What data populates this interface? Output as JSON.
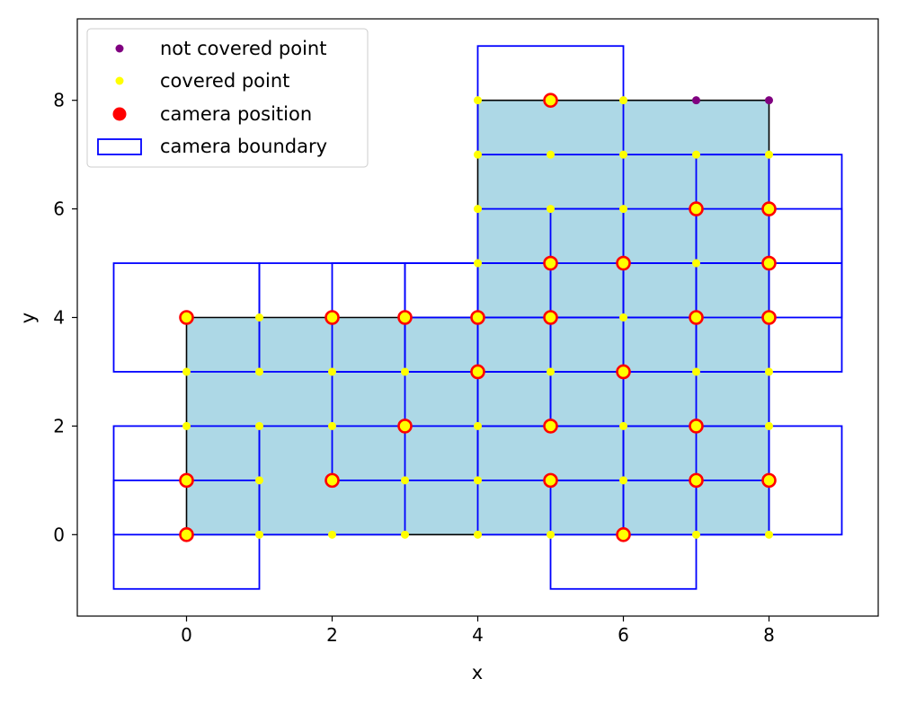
{
  "chart_data": {
    "type": "scatter",
    "title": "",
    "xlabel": "x",
    "ylabel": "y",
    "xlim": [
      -1.5,
      9.5
    ],
    "ylim": [
      -1.5,
      9.5
    ],
    "xticks": [
      0,
      2,
      4,
      6,
      8
    ],
    "yticks": [
      0,
      2,
      4,
      6,
      8
    ],
    "grid": false,
    "legend_position": "upper-left",
    "colors": {
      "region_fill": "#add8e6",
      "region_edge": "#000000",
      "boundary": "#0000ff",
      "covered": "#ffff00",
      "not_covered": "#800080",
      "camera": "#ff0000"
    },
    "legend": [
      {
        "label": "not covered point",
        "marker": "purple-dot"
      },
      {
        "label": "covered point",
        "marker": "yellow-dot"
      },
      {
        "label": "camera position",
        "marker": "red-circle"
      },
      {
        "label": "camera boundary",
        "marker": "blue-rect"
      }
    ],
    "region_polygon": [
      [
        0,
        0
      ],
      [
        4,
        0
      ],
      [
        4,
        8
      ],
      [
        8,
        8
      ],
      [
        8,
        0
      ],
      [
        0,
        0
      ],
      [
        0,
        4
      ],
      [
        4,
        4
      ]
    ],
    "region_outline": [
      [
        0,
        0
      ],
      [
        8,
        0
      ],
      [
        8,
        8
      ],
      [
        4,
        8
      ],
      [
        4,
        4
      ],
      [
        0,
        4
      ]
    ],
    "not_covered_points": [
      [
        7,
        8
      ],
      [
        8,
        8
      ]
    ],
    "covered_points": [
      [
        0,
        0
      ],
      [
        1,
        0
      ],
      [
        2,
        0
      ],
      [
        3,
        0
      ],
      [
        4,
        0
      ],
      [
        5,
        0
      ],
      [
        6,
        0
      ],
      [
        7,
        0
      ],
      [
        8,
        0
      ],
      [
        0,
        1
      ],
      [
        1,
        1
      ],
      [
        2,
        1
      ],
      [
        3,
        1
      ],
      [
        4,
        1
      ],
      [
        5,
        1
      ],
      [
        6,
        1
      ],
      [
        7,
        1
      ],
      [
        8,
        1
      ],
      [
        0,
        2
      ],
      [
        1,
        2
      ],
      [
        2,
        2
      ],
      [
        3,
        2
      ],
      [
        4,
        2
      ],
      [
        5,
        2
      ],
      [
        6,
        2
      ],
      [
        7,
        2
      ],
      [
        8,
        2
      ],
      [
        0,
        3
      ],
      [
        1,
        3
      ],
      [
        2,
        3
      ],
      [
        3,
        3
      ],
      [
        4,
        3
      ],
      [
        5,
        3
      ],
      [
        6,
        3
      ],
      [
        7,
        3
      ],
      [
        8,
        3
      ],
      [
        0,
        4
      ],
      [
        1,
        4
      ],
      [
        2,
        4
      ],
      [
        3,
        4
      ],
      [
        4,
        4
      ],
      [
        5,
        4
      ],
      [
        6,
        4
      ],
      [
        7,
        4
      ],
      [
        8,
        4
      ],
      [
        4,
        5
      ],
      [
        5,
        5
      ],
      [
        6,
        5
      ],
      [
        7,
        5
      ],
      [
        8,
        5
      ],
      [
        4,
        6
      ],
      [
        5,
        6
      ],
      [
        6,
        6
      ],
      [
        7,
        6
      ],
      [
        8,
        6
      ],
      [
        4,
        7
      ],
      [
        5,
        7
      ],
      [
        6,
        7
      ],
      [
        7,
        7
      ],
      [
        8,
        7
      ],
      [
        4,
        8
      ],
      [
        5,
        8
      ],
      [
        6,
        8
      ]
    ],
    "camera_positions": [
      [
        0,
        0
      ],
      [
        0,
        1
      ],
      [
        0,
        4
      ],
      [
        2,
        1
      ],
      [
        2,
        4
      ],
      [
        3,
        2
      ],
      [
        3,
        4
      ],
      [
        4,
        3
      ],
      [
        4,
        4
      ],
      [
        5,
        8
      ],
      [
        5,
        5
      ],
      [
        5,
        4
      ],
      [
        5,
        2
      ],
      [
        5,
        1
      ],
      [
        6,
        5
      ],
      [
        6,
        3
      ],
      [
        6,
        0
      ],
      [
        7,
        6
      ],
      [
        7,
        4
      ],
      [
        7,
        2
      ],
      [
        7,
        1
      ],
      [
        8,
        6
      ],
      [
        8,
        5
      ],
      [
        8,
        4
      ],
      [
        8,
        1
      ]
    ],
    "camera_boundaries": [
      [
        -1,
        -1,
        1,
        1
      ],
      [
        -1,
        0,
        1,
        2
      ],
      [
        -1,
        3,
        1,
        5
      ],
      [
        1,
        0,
        3,
        2
      ],
      [
        1,
        3,
        3,
        5
      ],
      [
        2,
        1,
        4,
        3
      ],
      [
        2,
        3,
        4,
        5
      ],
      [
        3,
        2,
        5,
        4
      ],
      [
        3,
        3,
        5,
        5
      ],
      [
        4,
        7,
        6,
        9
      ],
      [
        4,
        4,
        6,
        6
      ],
      [
        4,
        3,
        6,
        5
      ],
      [
        4,
        1,
        6,
        3
      ],
      [
        4,
        0,
        6,
        2
      ],
      [
        5,
        4,
        7,
        6
      ],
      [
        5,
        2,
        7,
        4
      ],
      [
        5,
        -1,
        7,
        1
      ],
      [
        6,
        5,
        8,
        7
      ],
      [
        6,
        3,
        8,
        5
      ],
      [
        6,
        1,
        8,
        3
      ],
      [
        6,
        0,
        8,
        2
      ],
      [
        7,
        5,
        9,
        7
      ],
      [
        7,
        4,
        9,
        6
      ],
      [
        7,
        3,
        9,
        5
      ],
      [
        7,
        0,
        9,
        2
      ]
    ]
  }
}
